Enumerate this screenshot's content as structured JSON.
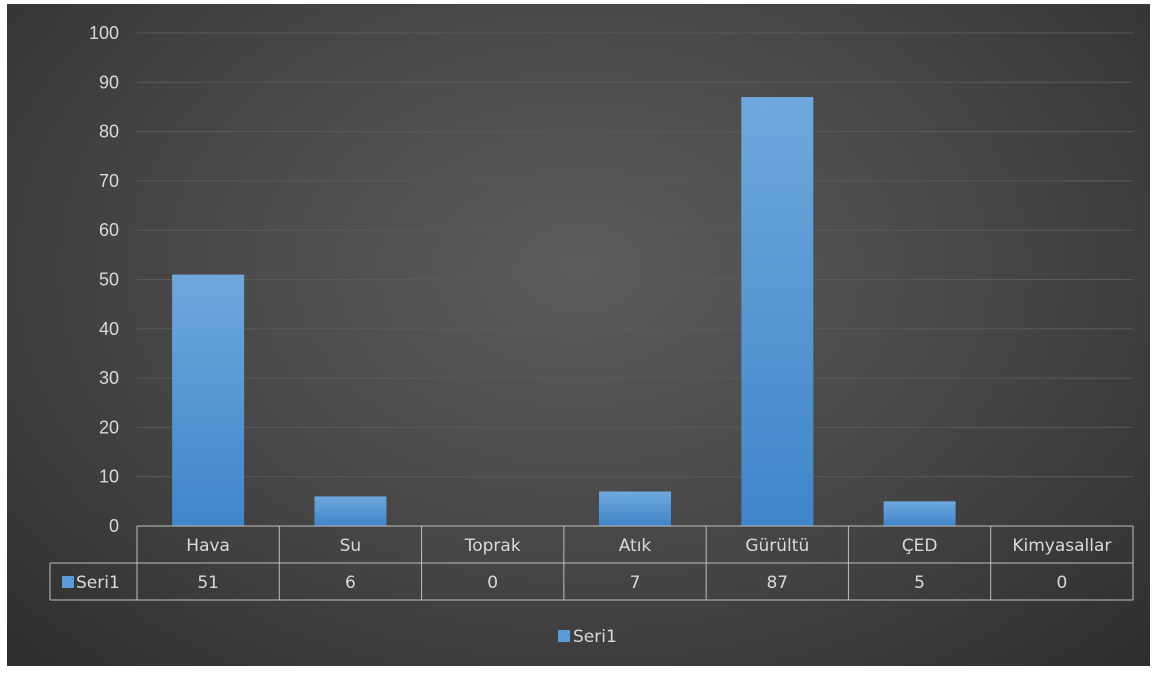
{
  "chart_data": {
    "type": "bar",
    "categories": [
      "Hava",
      "Su",
      "Toprak",
      "Atık",
      "Gürültü",
      "ÇED",
      "Kimyasallar"
    ],
    "series": [
      {
        "name": "Seri1",
        "values": [
          51,
          6,
          0,
          7,
          87,
          5,
          0
        ],
        "color": "#5b9bd5"
      }
    ],
    "title": "",
    "xlabel": "",
    "ylabel": "",
    "ylim": [
      0,
      100
    ],
    "yticks": [
      0,
      10,
      20,
      30,
      40,
      50,
      60,
      70,
      80,
      90,
      100
    ],
    "grid": true,
    "data_table": true,
    "legend": {
      "position": "bottom",
      "entries": [
        "Seri1"
      ]
    },
    "colors": {
      "background": "#404040",
      "gridline": "#5a5a5a",
      "text": "#d9d9d9",
      "table_border": "#bfbfbf"
    }
  }
}
